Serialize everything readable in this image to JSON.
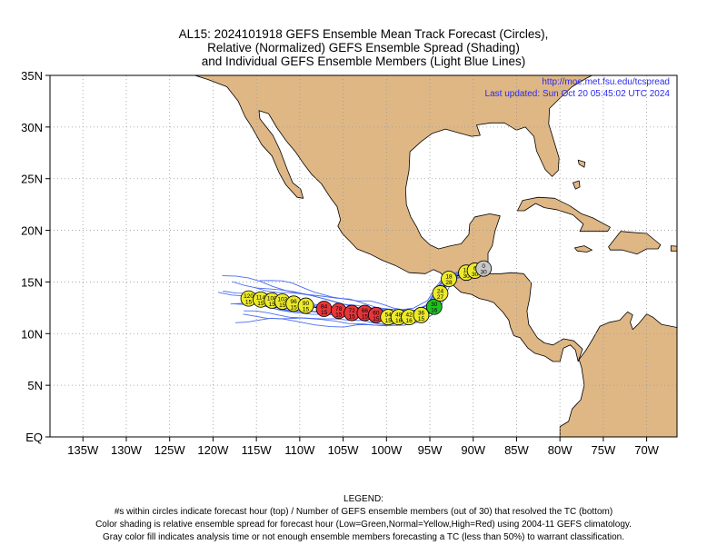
{
  "title": {
    "line1": "AL15: 2024101918 GEFS Ensemble Mean Track Forecast (Circles),",
    "line2": "Relative (Normalized) GEFS Ensemble Spread (Shading)",
    "line3": "and Individual GEFS Ensemble Members (Light Blue Lines)"
  },
  "credit": {
    "url": "http://moe.met.fsu.edu/tcspread",
    "updated": "Last updated: Sun Oct 20 05:45:02 UTC 2024"
  },
  "axes": {
    "x_ticks": [
      "135W",
      "130W",
      "125W",
      "120W",
      "115W",
      "110W",
      "105W",
      "100W",
      "95W",
      "90W",
      "85W",
      "80W",
      "75W",
      "70W"
    ],
    "y_ticks": [
      "35N",
      "30N",
      "25N",
      "20N",
      "15N",
      "10N",
      "5N",
      "EQ"
    ]
  },
  "colors": {
    "land": "#dfb785",
    "ocean": "#ffffff",
    "member_tracks": "#4a6cf0",
    "low_spread": "#1fc31f",
    "normal_spread": "#ecea2a",
    "high_spread": "#e8353a",
    "analysis_gray": "#c8c8c8"
  },
  "track": [
    {
      "hour": "0",
      "members": "30",
      "lon": -88.8,
      "lat": 16.3,
      "color": "gray"
    },
    {
      "hour": "6",
      "members": "30",
      "lon": -89.8,
      "lat": 16.1,
      "color": "yellow"
    },
    {
      "hour": "12",
      "members": "30",
      "lon": -90.8,
      "lat": 15.9,
      "color": "yellow"
    },
    {
      "hour": "18",
      "members": "28",
      "lon": -92.8,
      "lat": 15.3,
      "color": "yellow"
    },
    {
      "hour": "24",
      "members": "27",
      "lon": -93.8,
      "lat": 13.9,
      "color": "yellow"
    },
    {
      "hour": "30",
      "members": "16",
      "lon": -94.5,
      "lat": 12.6,
      "color": "green"
    },
    {
      "hour": "36",
      "members": "15",
      "lon": -96.0,
      "lat": 11.8,
      "color": "yellow"
    },
    {
      "hour": "42",
      "members": "16",
      "lon": -97.4,
      "lat": 11.6,
      "color": "yellow"
    },
    {
      "hour": "48",
      "members": "16",
      "lon": -98.6,
      "lat": 11.6,
      "color": "yellow"
    },
    {
      "hour": "54",
      "members": "15",
      "lon": -99.8,
      "lat": 11.6,
      "color": "yellow"
    },
    {
      "hour": "60",
      "members": "15",
      "lon": -101.2,
      "lat": 11.8,
      "color": "red"
    },
    {
      "hour": "66",
      "members": "15",
      "lon": -102.5,
      "lat": 12.0,
      "color": "red"
    },
    {
      "hour": "72",
      "members": "15",
      "lon": -104.0,
      "lat": 12.0,
      "color": "red"
    },
    {
      "hour": "78",
      "members": "15",
      "lon": -105.5,
      "lat": 12.2,
      "color": "red"
    },
    {
      "hour": "84",
      "members": "15",
      "lon": -107.2,
      "lat": 12.4,
      "color": "red"
    },
    {
      "hour": "90",
      "members": "15",
      "lon": -109.3,
      "lat": 12.7,
      "color": "yellow"
    },
    {
      "hour": "96",
      "members": "15",
      "lon": -110.7,
      "lat": 12.9,
      "color": "yellow"
    },
    {
      "hour": "102",
      "members": "15",
      "lon": -112.0,
      "lat": 13.1,
      "color": "yellow"
    },
    {
      "hour": "108",
      "members": "15",
      "lon": -113.2,
      "lat": 13.2,
      "color": "yellow"
    },
    {
      "hour": "114",
      "members": "15",
      "lon": -114.5,
      "lat": 13.3,
      "color": "yellow"
    },
    {
      "hour": "120",
      "members": "15",
      "lon": -115.9,
      "lat": 13.4,
      "color": "yellow"
    }
  ],
  "legend": {
    "heading": "LEGEND:",
    "line1": "#s within circles indicate forecast hour (top) / Number of GEFS ensemble members (out of 30) that resolved the TC (bottom)",
    "line2": "Color shading is relative ensemble spread for forecast hour (Low=Green,Normal=Yellow,High=Red) using 2004-11 GEFS climatology.",
    "line3": "Gray color fill indicates analysis time or not enough ensemble members forecasting a TC (less than 50%) to warrant classification."
  }
}
